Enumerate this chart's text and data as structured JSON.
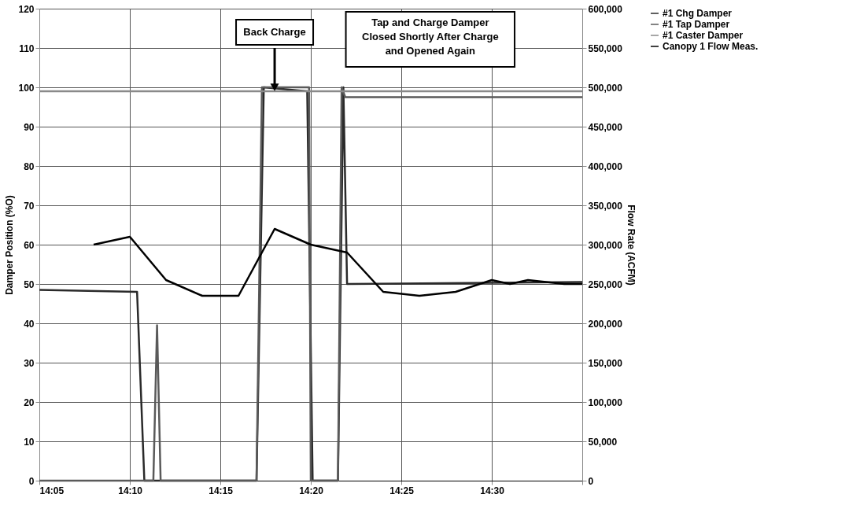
{
  "chart_data": {
    "type": "line",
    "xlim": [
      14.0833,
      14.5833
    ],
    "xticks": [
      {
        "value": 14.0833,
        "label": "14:05"
      },
      {
        "value": 14.1667,
        "label": "14:10"
      },
      {
        "value": 14.25,
        "label": "14:15"
      },
      {
        "value": 14.3333,
        "label": "14:20"
      },
      {
        "value": 14.4167,
        "label": "14:25"
      },
      {
        "value": 14.5,
        "label": "14:30"
      },
      {
        "value": 14.5833,
        "label": null
      }
    ],
    "ylabel": "Damper Position (%O)",
    "y2label": "Flow Rate (ACFM)",
    "ylim": [
      0,
      120
    ],
    "yticks": [
      0,
      10,
      20,
      30,
      40,
      50,
      60,
      70,
      80,
      90,
      100,
      110,
      120
    ],
    "y2lim": [
      0,
      600000
    ],
    "y2ticks": [
      0,
      {
        "value": 50000,
        "label": "50,000"
      },
      {
        "value": 100000,
        "label": "100,000"
      },
      {
        "value": 150000,
        "label": "150,000"
      },
      {
        "value": 200000,
        "label": "200,000"
      },
      {
        "value": 250000,
        "label": "250,000"
      },
      {
        "value": 300000,
        "label": "300,000"
      },
      {
        "value": 350000,
        "label": "350,000"
      },
      {
        "value": 400000,
        "label": "400,000"
      },
      {
        "value": 450000,
        "label": "450,000"
      },
      {
        "value": 500000,
        "label": "500,000"
      },
      {
        "value": 550000,
        "label": "550,000"
      },
      {
        "value": 600000,
        "label": "600,000"
      }
    ],
    "grid": true,
    "legend": "right",
    "line_style": "solid",
    "series": [
      {
        "name": "#1 Chg Damper",
        "color": "#2a2a2a",
        "x": [
          14.0833,
          14.1733,
          14.18,
          14.2833,
          14.29,
          14.33,
          14.335,
          14.3583,
          14.3633,
          14.3667,
          14.5833
        ],
        "values": [
          48.5,
          48,
          0,
          0,
          100,
          99,
          0,
          0,
          100,
          50,
          50.5
        ]
      },
      {
        "name": "#1 Tap Damper",
        "color": "#5a5a5a",
        "x": [
          14.0833,
          14.1883,
          14.1917,
          14.195,
          14.2833,
          14.2883,
          14.3317,
          14.3333,
          14.3583,
          14.3617,
          14.365,
          14.5833
        ],
        "values": [
          0,
          0,
          39.5,
          0,
          0,
          100,
          100,
          0,
          0,
          100,
          97.5,
          97.5
        ]
      },
      {
        "name": "#1 Caster Damper",
        "color": "#8a8a8a",
        "x": [
          14.0833,
          14.5833
        ],
        "values": [
          99,
          99
        ]
      },
      {
        "name": "Canopy 1 Flow Meas.",
        "color": "#000000",
        "axis": "y2",
        "x": [
          14.1333,
          14.1667,
          14.2,
          14.2333,
          14.2667,
          14.3,
          14.3333,
          14.3667,
          14.4,
          14.4333,
          14.4667,
          14.5,
          14.5167,
          14.5333,
          14.5667,
          14.5833
        ],
        "values": [
          300000,
          310000,
          255000,
          235000,
          235000,
          320000,
          300000,
          290000,
          240000,
          235000,
          240000,
          255000,
          250000,
          255000,
          250000,
          250000
        ]
      }
    ],
    "annotations": [
      {
        "text": "Back Charge",
        "x": 14.3,
        "y": 100
      },
      "Tap and Charge Damper\nClosed Shortly After Charge\nand Opened Again"
    ]
  }
}
